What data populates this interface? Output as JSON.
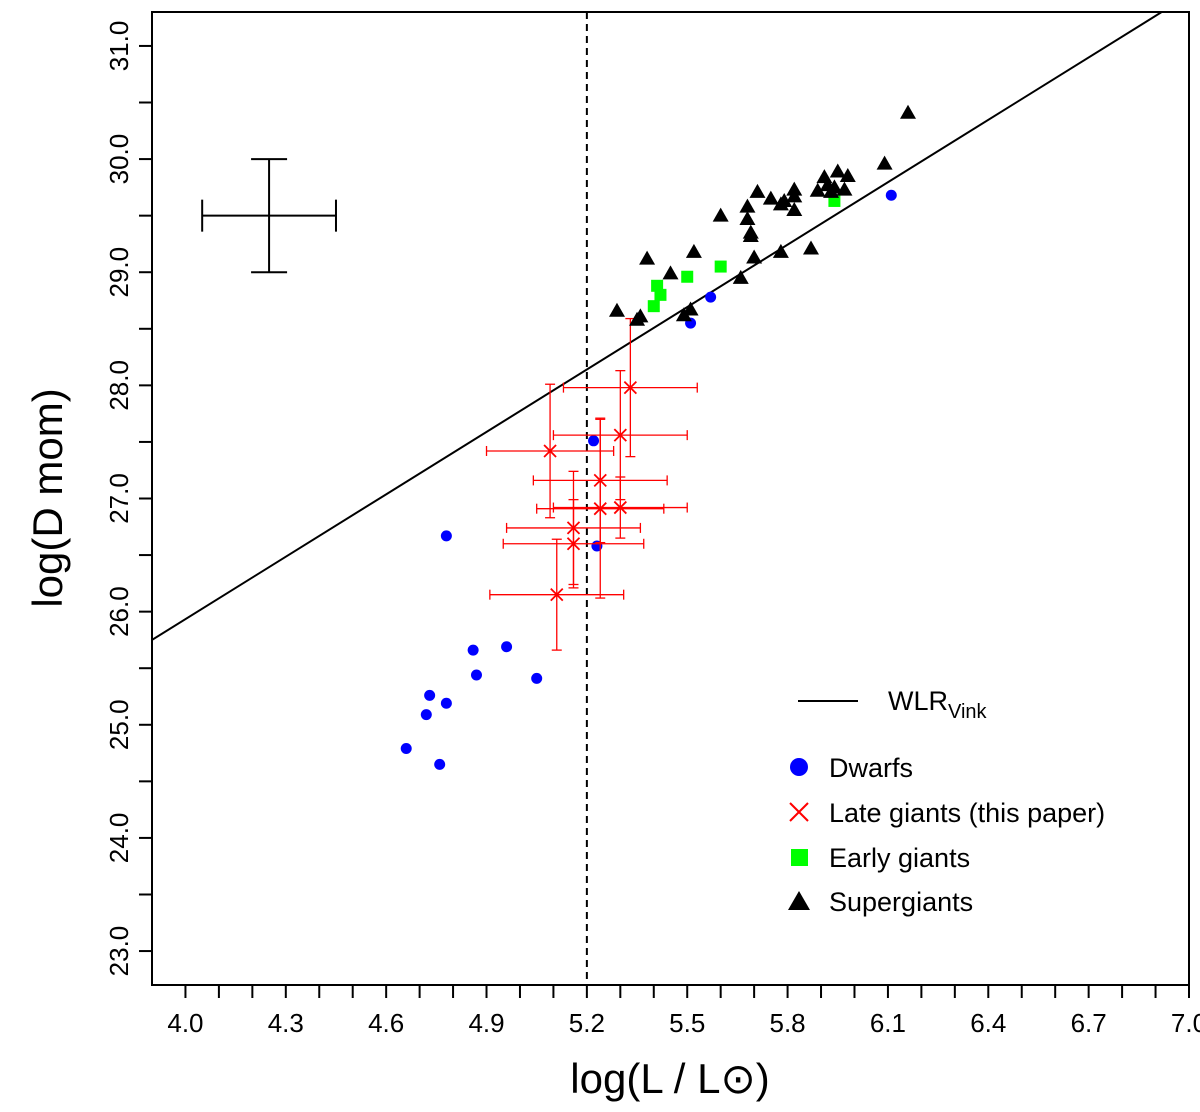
{
  "chart_data": {
    "type": "scatter",
    "title": "",
    "xlabel": "log(L / L⊙)",
    "ylabel": "log(D mom)",
    "xlim": [
      3.9,
      7.0
    ],
    "ylim": [
      22.7,
      31.3
    ],
    "x_ticks": [
      4.0,
      4.1,
      4.2,
      4.3,
      4.4,
      4.5,
      4.6,
      4.7,
      4.8,
      4.9,
      5.0,
      5.1,
      5.2,
      5.3,
      5.4,
      5.5,
      5.6,
      5.7,
      5.8,
      5.9,
      6.0,
      6.1,
      6.2,
      6.3,
      6.4,
      6.5,
      6.6,
      6.7,
      6.8,
      6.9,
      7.0
    ],
    "x_tick_labels": [
      "4.0",
      "4.3",
      "4.6",
      "4.9",
      "5.2",
      "5.5",
      "5.8",
      "6.1",
      "6.4",
      "6.7",
      "7.0"
    ],
    "x_tick_label_values": [
      4.0,
      4.3,
      4.6,
      4.9,
      5.2,
      5.5,
      5.8,
      6.1,
      6.4,
      6.7,
      7.0
    ],
    "y_ticks": [
      23.0,
      23.5,
      24.0,
      24.5,
      25.0,
      25.5,
      26.0,
      26.5,
      27.0,
      27.5,
      28.0,
      28.5,
      29.0,
      29.5,
      30.0,
      30.5,
      31.0
    ],
    "y_tick_labels": [
      "23.0",
      "24.0",
      "25.0",
      "26.0",
      "27.0",
      "28.0",
      "29.0",
      "30.0",
      "31.0"
    ],
    "y_tick_label_values": [
      23.0,
      24.0,
      25.0,
      26.0,
      27.0,
      28.0,
      29.0,
      30.0,
      31.0
    ],
    "vertical_line_x": 5.2,
    "wlr_line": {
      "name": "WLR",
      "subscript": "Vink",
      "x": [
        3.9,
        7.0
      ],
      "y": [
        25.75,
        31.45
      ]
    },
    "typical_error": {
      "x": 4.25,
      "y": 29.5,
      "xerr": 0.2,
      "yerr": 0.5
    },
    "series": [
      {
        "name": "Dwarfs",
        "marker": "circle",
        "color": "#0000ff",
        "points": [
          [
            4.66,
            24.79
          ],
          [
            4.72,
            25.09
          ],
          [
            4.73,
            25.26
          ],
          [
            4.76,
            24.65
          ],
          [
            4.78,
            25.19
          ],
          [
            4.78,
            26.67
          ],
          [
            4.86,
            25.66
          ],
          [
            4.87,
            25.44
          ],
          [
            4.96,
            25.69
          ],
          [
            5.05,
            25.41
          ],
          [
            5.22,
            27.51
          ],
          [
            5.23,
            26.58
          ],
          [
            5.51,
            28.55
          ],
          [
            5.57,
            28.78
          ],
          [
            6.11,
            29.68
          ]
        ]
      },
      {
        "name": "Late giants (this paper)",
        "marker": "x",
        "color": "#ff0000",
        "points": [
          {
            "x": 5.09,
            "y": 27.42,
            "xerr": 0.19,
            "yerr": 0.59
          },
          {
            "x": 5.11,
            "y": 26.15,
            "xerr": 0.2,
            "yerr": 0.49
          },
          {
            "x": 5.16,
            "y": 26.74,
            "xerr": 0.2,
            "yerr": 0.5
          },
          {
            "x": 5.16,
            "y": 26.6,
            "xerr": 0.21,
            "yerr": 0.39
          },
          {
            "x": 5.24,
            "y": 27.16,
            "xerr": 0.2,
            "yerr": 0.55
          },
          {
            "x": 5.24,
            "y": 26.91,
            "xerr": 0.19,
            "yerr": 0.79
          },
          {
            "x": 5.3,
            "y": 27.56,
            "xerr": 0.2,
            "yerr": 0.57
          },
          {
            "x": 5.3,
            "y": 26.92,
            "xerr": 0.2,
            "yerr": 0.27
          },
          {
            "x": 5.33,
            "y": 27.98,
            "xerr": 0.2,
            "yerr": 0.61
          }
        ]
      },
      {
        "name": "Early giants",
        "marker": "square",
        "color": "#00ff00",
        "points": [
          [
            5.4,
            28.7
          ],
          [
            5.41,
            28.88
          ],
          [
            5.42,
            28.8
          ],
          [
            5.5,
            28.96
          ],
          [
            5.6,
            29.05
          ],
          [
            5.94,
            29.63
          ]
        ]
      },
      {
        "name": "Supergiants",
        "marker": "triangle",
        "color": "#000000",
        "points": [
          [
            5.29,
            28.66
          ],
          [
            5.35,
            28.58
          ],
          [
            5.36,
            28.61
          ],
          [
            5.38,
            29.12
          ],
          [
            5.45,
            28.99
          ],
          [
            5.49,
            28.62
          ],
          [
            5.51,
            28.67
          ],
          [
            5.52,
            29.18
          ],
          [
            5.6,
            29.5
          ],
          [
            5.66,
            28.95
          ],
          [
            5.68,
            29.58
          ],
          [
            5.68,
            29.47
          ],
          [
            5.69,
            29.35
          ],
          [
            5.69,
            29.32
          ],
          [
            5.7,
            29.13
          ],
          [
            5.71,
            29.71
          ],
          [
            5.75,
            29.65
          ],
          [
            5.78,
            29.6
          ],
          [
            5.78,
            29.18
          ],
          [
            5.79,
            29.63
          ],
          [
            5.82,
            29.73
          ],
          [
            5.82,
            29.67
          ],
          [
            5.82,
            29.55
          ],
          [
            5.87,
            29.21
          ],
          [
            5.89,
            29.72
          ],
          [
            5.91,
            29.84
          ],
          [
            5.92,
            29.77
          ],
          [
            5.93,
            29.71
          ],
          [
            5.94,
            29.75
          ],
          [
            5.95,
            29.89
          ],
          [
            5.97,
            29.73
          ],
          [
            5.98,
            29.85
          ],
          [
            6.09,
            29.96
          ],
          [
            6.16,
            30.41
          ]
        ]
      }
    ],
    "legend_position": "bottom-right"
  }
}
